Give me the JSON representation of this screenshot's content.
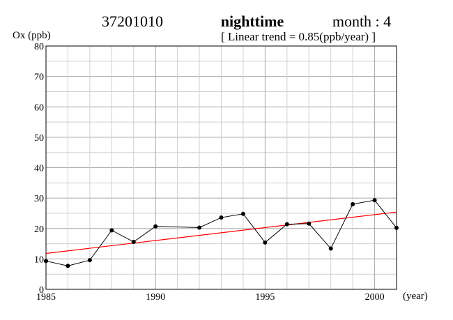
{
  "header": {
    "station": "37201010",
    "period": "nighttime",
    "month": "month : 4",
    "trend_label": "[ Linear trend = 0.85(ppb/year) ]"
  },
  "chart_data": {
    "type": "line",
    "title": "",
    "xlabel": "(year)",
    "ylabel": "Ox (ppb)",
    "xlim": [
      1985,
      2001
    ],
    "ylim": [
      0,
      80
    ],
    "x_ticks": [
      1985,
      1990,
      1995,
      2000
    ],
    "y_ticks": [
      0,
      10,
      20,
      30,
      40,
      50,
      60,
      70,
      80
    ],
    "grid": true,
    "series": [
      {
        "points": [
          {
            "x": 1985,
            "y": 9.3
          },
          {
            "x": 1986,
            "y": 7.7
          },
          {
            "x": 1987,
            "y": 9.6
          },
          {
            "x": 1988,
            "y": 19.4
          },
          {
            "x": 1989,
            "y": 15.6
          },
          {
            "x": 1990,
            "y": 20.7
          },
          {
            "x": 1992,
            "y": 20.3
          },
          {
            "x": 1993,
            "y": 23.6
          },
          {
            "x": 1994,
            "y": 24.8
          },
          {
            "x": 1995,
            "y": 15.4
          },
          {
            "x": 1996,
            "y": 21.4
          },
          {
            "x": 1997,
            "y": 21.6
          },
          {
            "x": 1998,
            "y": 13.4
          },
          {
            "x": 1999,
            "y": 28.0
          },
          {
            "x": 2000,
            "y": 29.3
          },
          {
            "x": 2001,
            "y": 20.2
          }
        ],
        "color": "#000000"
      }
    ],
    "trend_line": {
      "start": {
        "x": 1985,
        "y": 11.8
      },
      "end": {
        "x": 2001,
        "y": 25.4
      },
      "color": "#ff0000"
    }
  }
}
